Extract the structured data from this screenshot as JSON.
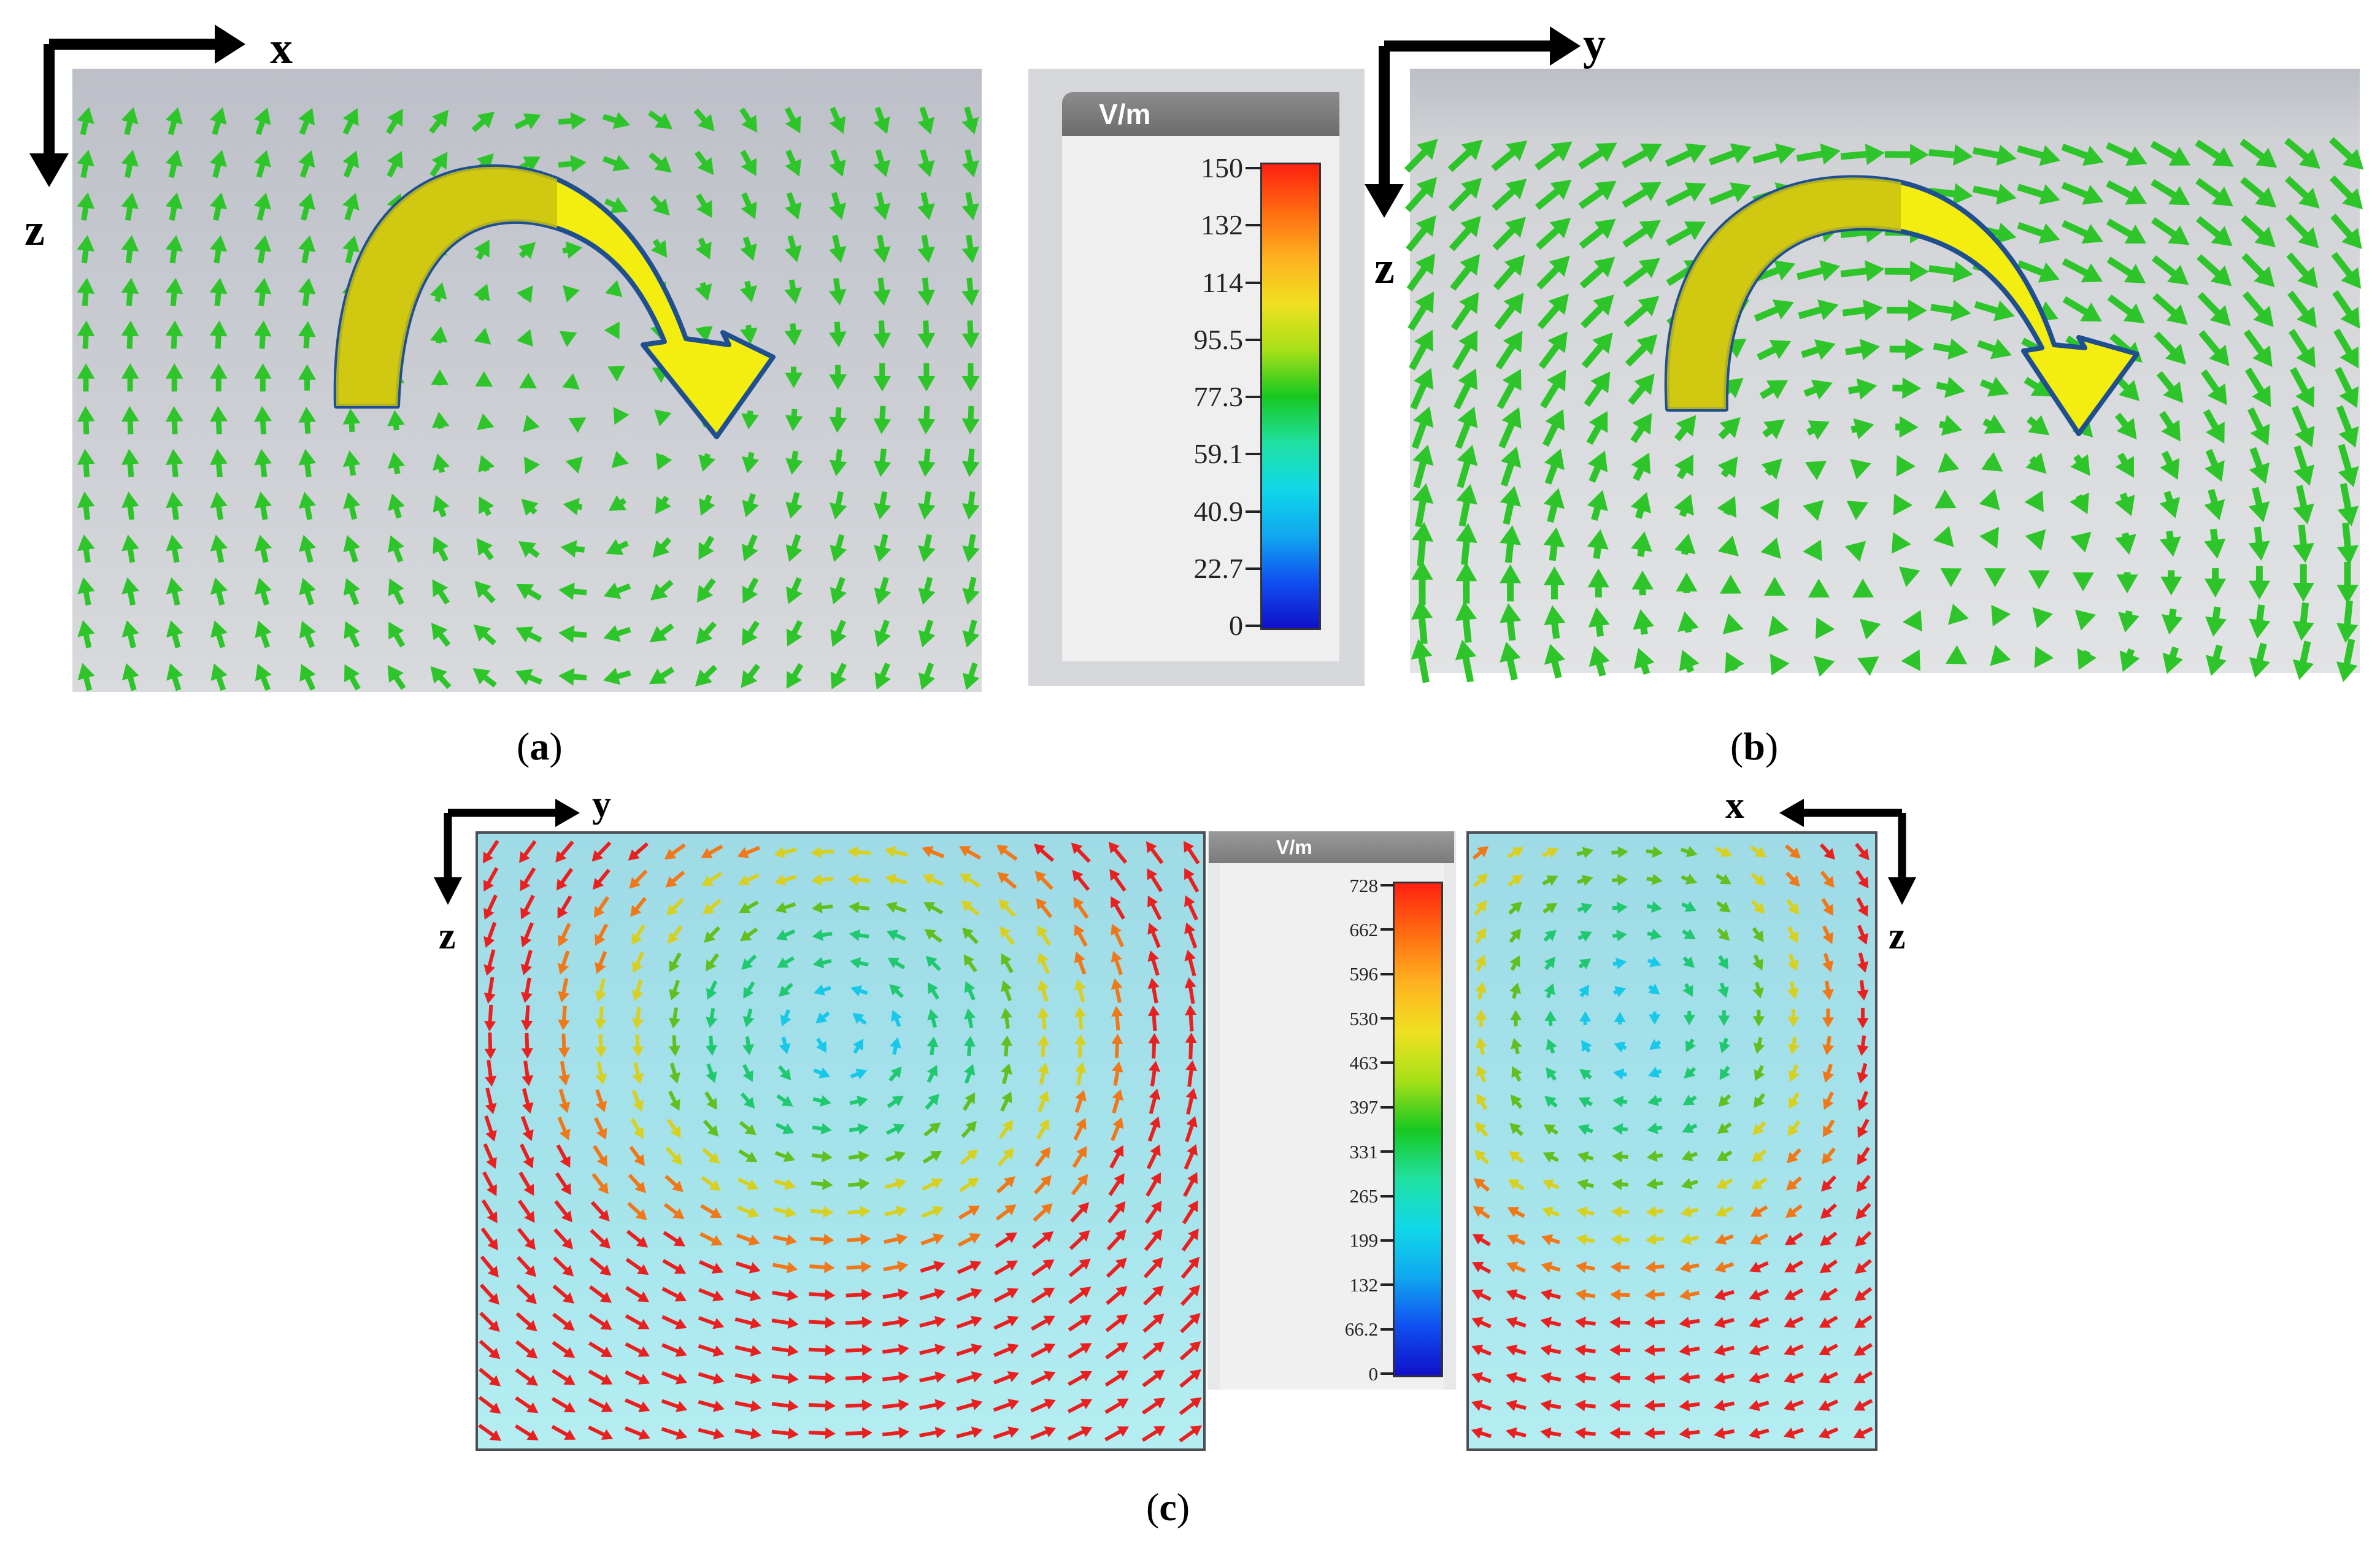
{
  "panel_a": {
    "caption_letter": "a",
    "axis_h": "x",
    "axis_v": "z"
  },
  "panel_b": {
    "caption_letter": "b",
    "axis_h": "y",
    "axis_v": "z"
  },
  "panel_c": {
    "caption_letter": "c",
    "left_axis_h": "y",
    "left_axis_v": "z",
    "right_axis_h": "x",
    "right_axis_v": "z"
  },
  "legend_top": {
    "unit": "V/m",
    "ticks": [
      "150",
      "132",
      "114",
      "95.5",
      "77.3",
      "59.1",
      "40.9",
      "22.7",
      "0"
    ]
  },
  "legend_bottom": {
    "unit": "V/m",
    "ticks": [
      "728",
      "662",
      "596",
      "530",
      "463",
      "397",
      "331",
      "265",
      "199",
      "132",
      "66.2",
      "0"
    ]
  },
  "colors": {
    "arrow_green": "#2ec52a",
    "curved_arrow_fill": "#f4ee10",
    "curved_arrow_outline": "#1f4f8f"
  }
}
